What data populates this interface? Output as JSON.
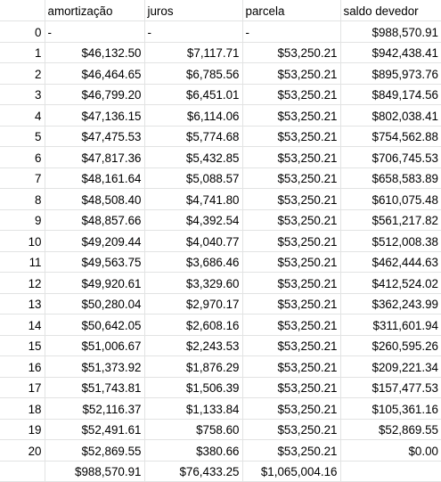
{
  "headers": [
    "",
    "amortização",
    "juros",
    "parcela",
    "saldo devedor"
  ],
  "rows": [
    [
      "0",
      "-",
      "-",
      "-",
      "$988,570.91"
    ],
    [
      "1",
      "$46,132.50",
      "$7,117.71",
      "$53,250.21",
      "$942,438.41"
    ],
    [
      "2",
      "$46,464.65",
      "$6,785.56",
      "$53,250.21",
      "$895,973.76"
    ],
    [
      "3",
      "$46,799.20",
      "$6,451.01",
      "$53,250.21",
      "$849,174.56"
    ],
    [
      "4",
      "$47,136.15",
      "$6,114.06",
      "$53,250.21",
      "$802,038.41"
    ],
    [
      "5",
      "$47,475.53",
      "$5,774.68",
      "$53,250.21",
      "$754,562.88"
    ],
    [
      "6",
      "$47,817.36",
      "$5,432.85",
      "$53,250.21",
      "$706,745.53"
    ],
    [
      "7",
      "$48,161.64",
      "$5,088.57",
      "$53,250.21",
      "$658,583.89"
    ],
    [
      "8",
      "$48,508.40",
      "$4,741.80",
      "$53,250.21",
      "$610,075.48"
    ],
    [
      "9",
      "$48,857.66",
      "$4,392.54",
      "$53,250.21",
      "$561,217.82"
    ],
    [
      "10",
      "$49,209.44",
      "$4,040.77",
      "$53,250.21",
      "$512,008.38"
    ],
    [
      "11",
      "$49,563.75",
      "$3,686.46",
      "$53,250.21",
      "$462,444.63"
    ],
    [
      "12",
      "$49,920.61",
      "$3,329.60",
      "$53,250.21",
      "$412,524.02"
    ],
    [
      "13",
      "$50,280.04",
      "$2,970.17",
      "$53,250.21",
      "$362,243.99"
    ],
    [
      "14",
      "$50,642.05",
      "$2,608.16",
      "$53,250.21",
      "$311,601.94"
    ],
    [
      "15",
      "$51,006.67",
      "$2,243.53",
      "$53,250.21",
      "$260,595.26"
    ],
    [
      "16",
      "$51,373.92",
      "$1,876.29",
      "$53,250.21",
      "$209,221.34"
    ],
    [
      "17",
      "$51,743.81",
      "$1,506.39",
      "$53,250.21",
      "$157,477.53"
    ],
    [
      "18",
      "$52,116.37",
      "$1,133.84",
      "$53,250.21",
      "$105,361.16"
    ],
    [
      "19",
      "$52,491.61",
      "$758.60",
      "$53,250.21",
      "$52,869.55"
    ],
    [
      "20",
      "$52,869.55",
      "$380.66",
      "$53,250.21",
      "$0.00"
    ]
  ],
  "totals": [
    "",
    "$988,570.91",
    "$76,433.25",
    "$1,065,004.16",
    ""
  ]
}
